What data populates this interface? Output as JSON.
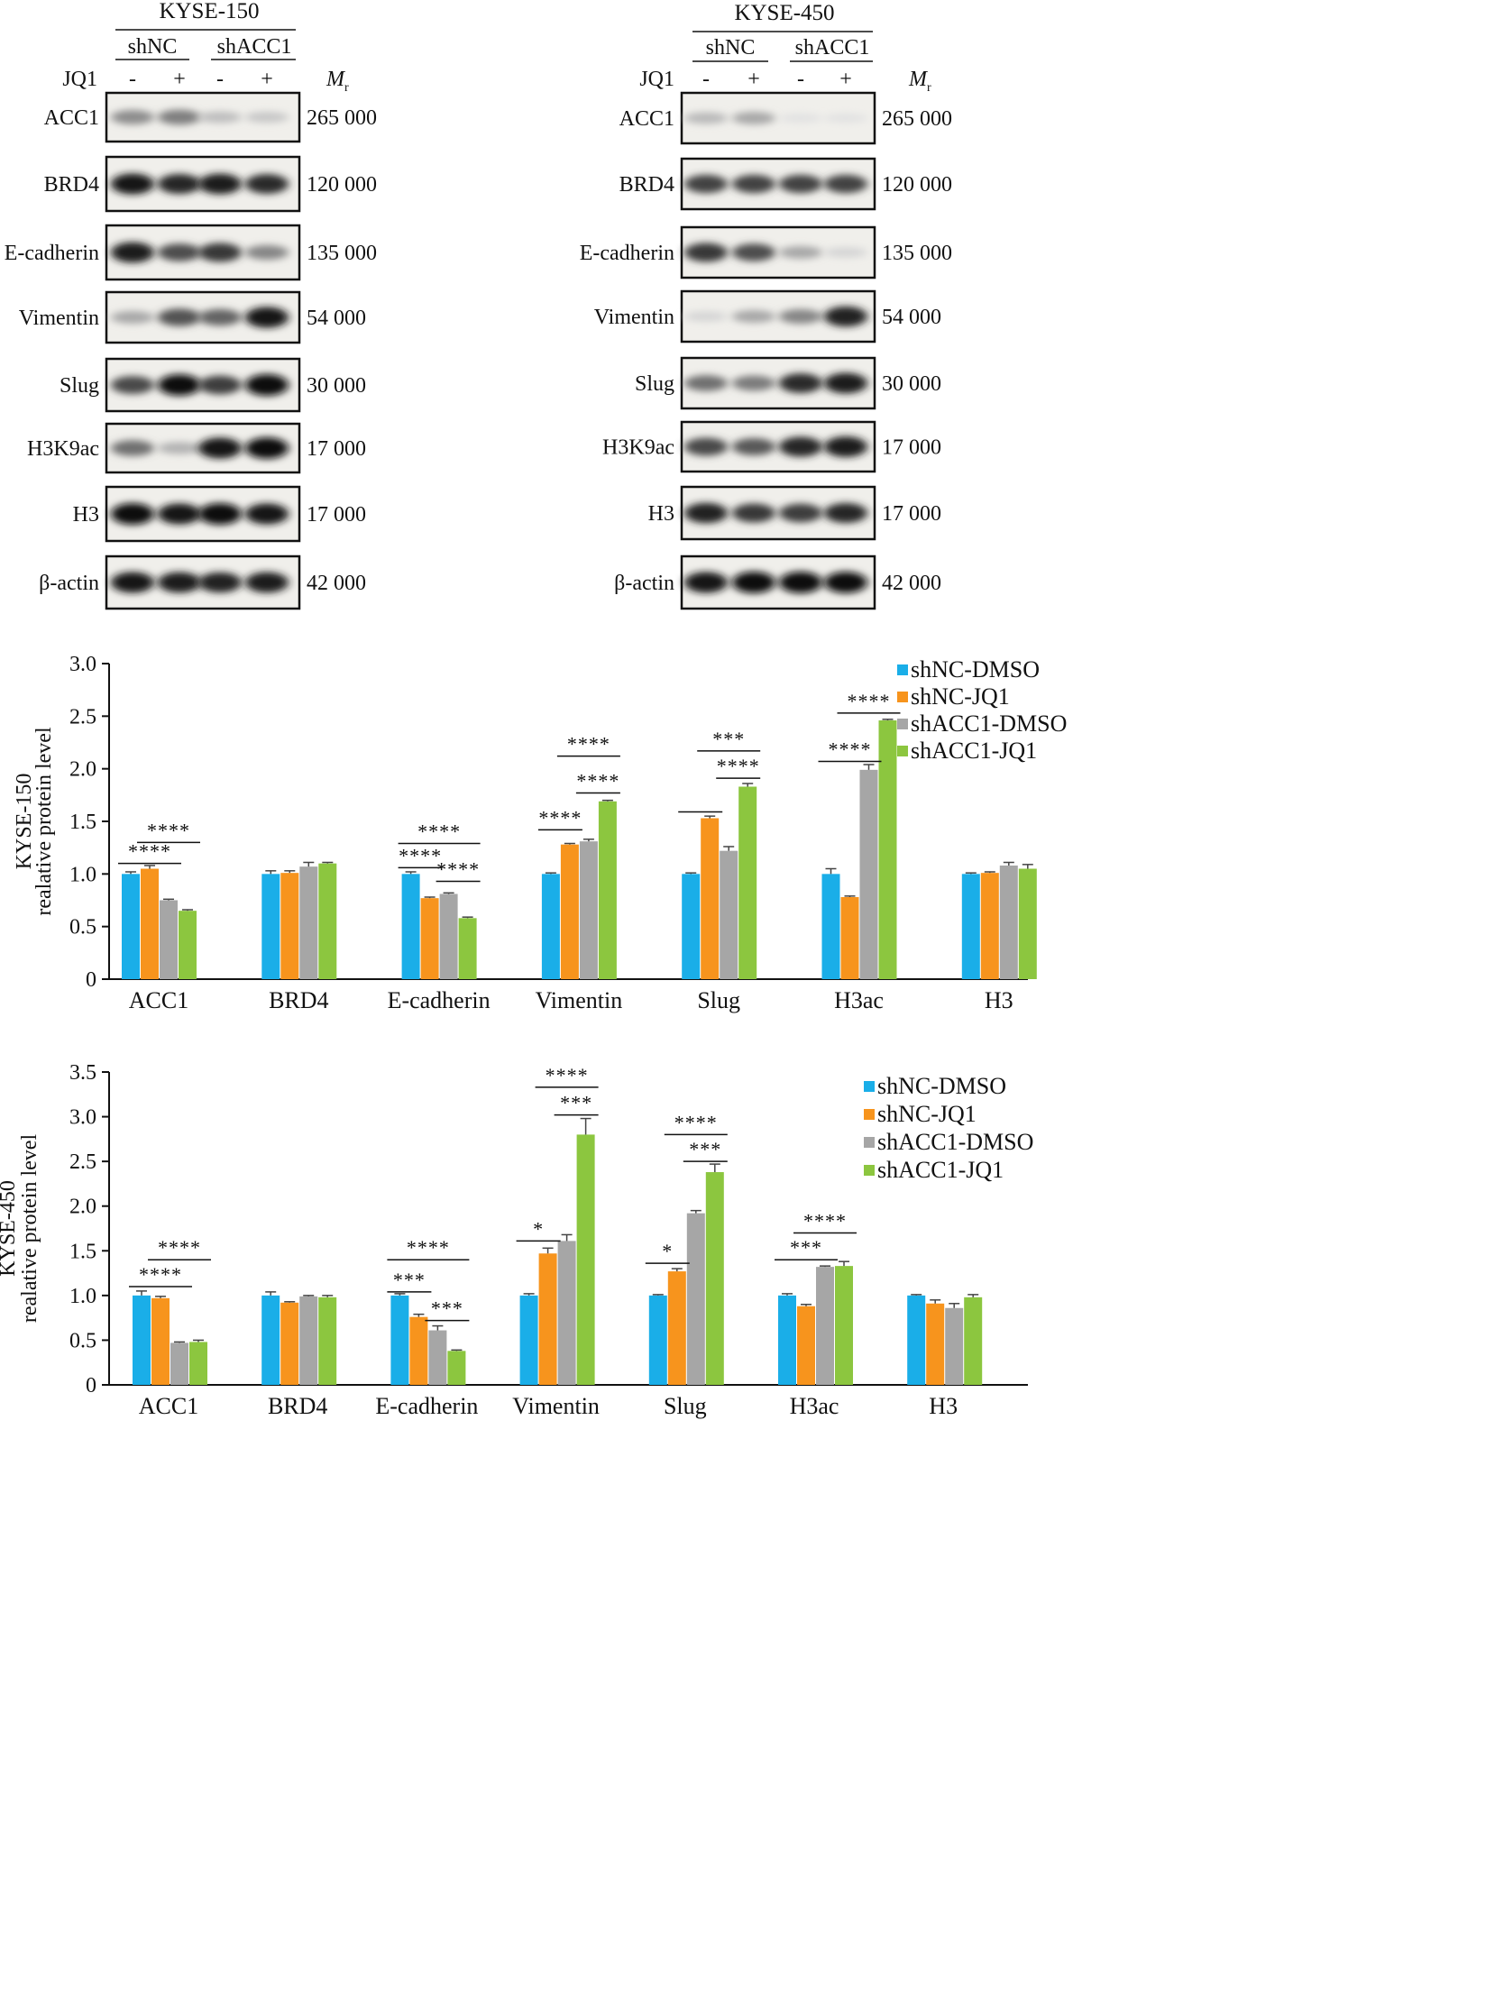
{
  "blots": [
    {
      "cell_line": "KYSE-150",
      "groups": [
        "shNC",
        "shACC1"
      ],
      "jq1_label": "JQ1",
      "jq1_signs": [
        "-",
        "+",
        "-",
        "+"
      ],
      "mr_label": "M",
      "mr_sub": "r",
      "rows": [
        {
          "protein": "ACC1",
          "mr": "265 000",
          "intensity": [
            0.42,
            0.48,
            0.2,
            0.16
          ]
        },
        {
          "protein": "BRD4",
          "mr": "120 000",
          "intensity": [
            0.95,
            0.88,
            0.92,
            0.85
          ]
        },
        {
          "protein": "E-cadherin",
          "mr": "135 000",
          "intensity": [
            0.92,
            0.7,
            0.8,
            0.45
          ]
        },
        {
          "protein": "Vimentin",
          "mr": "54 000",
          "intensity": [
            0.3,
            0.68,
            0.6,
            0.95
          ]
        },
        {
          "protein": "Slug",
          "mr": "30 000",
          "intensity": [
            0.72,
            0.98,
            0.78,
            1.0
          ]
        },
        {
          "protein": "H3K9ac",
          "mr": "17 000",
          "intensity": [
            0.55,
            0.25,
            0.95,
            0.98
          ]
        },
        {
          "protein": "H3",
          "mr": "17 000",
          "intensity": [
            1.0,
            0.95,
            1.0,
            0.95
          ]
        },
        {
          "protein": "β-actin",
          "mr": "42 000",
          "intensity": [
            0.95,
            0.92,
            0.9,
            0.92
          ]
        }
      ]
    },
    {
      "cell_line": "KYSE-450",
      "groups": [
        "shNC",
        "shACC1"
      ],
      "jq1_label": "JQ1",
      "jq1_signs": [
        "-",
        "+",
        "-",
        "+"
      ],
      "mr_label": "M",
      "mr_sub": "r",
      "rows": [
        {
          "protein": "ACC1",
          "mr": "265 000",
          "intensity": [
            0.22,
            0.3,
            0.04,
            0.04
          ]
        },
        {
          "protein": "BRD4",
          "mr": "120 000",
          "intensity": [
            0.75,
            0.75,
            0.75,
            0.75
          ]
        },
        {
          "protein": "E-cadherin",
          "mr": "135 000",
          "intensity": [
            0.8,
            0.7,
            0.3,
            0.1
          ]
        },
        {
          "protein": "Vimentin",
          "mr": "54 000",
          "intensity": [
            0.1,
            0.3,
            0.45,
            0.9
          ]
        },
        {
          "protein": "Slug",
          "mr": "30 000",
          "intensity": [
            0.55,
            0.5,
            0.85,
            0.92
          ]
        },
        {
          "protein": "H3K9ac",
          "mr": "17 000",
          "intensity": [
            0.72,
            0.65,
            0.88,
            0.92
          ]
        },
        {
          "protein": "H3",
          "mr": "17 000",
          "intensity": [
            0.9,
            0.8,
            0.78,
            0.88
          ]
        },
        {
          "protein": "β-actin",
          "mr": "42 000",
          "intensity": [
            0.95,
            1.0,
            1.0,
            0.98
          ]
        }
      ]
    }
  ],
  "chart_data": [
    {
      "type": "bar",
      "ylabel": [
        "KYSE-150",
        "realative protein level"
      ],
      "ylim": [
        0,
        3.0
      ],
      "yticks": [
        "0",
        "0.5",
        "1.0",
        "1.5",
        "2.0",
        "2.5",
        "3.0"
      ],
      "categories": [
        "ACC1",
        "BRD4",
        "E-cadherin",
        "Vimentin",
        "Slug",
        "H3ac",
        "H3"
      ],
      "series": [
        {
          "name": "shNC-DMSO",
          "color": "#1aaee8",
          "values": [
            1.0,
            1.0,
            1.0,
            1.0,
            1.0,
            1.0,
            1.0
          ],
          "errors": [
            0.02,
            0.03,
            0.02,
            0.01,
            0.01,
            0.05,
            0.01
          ]
        },
        {
          "name": "shNC-JQ1",
          "color": "#f7941d",
          "values": [
            1.05,
            1.01,
            0.77,
            1.28,
            1.53,
            0.78,
            1.01
          ],
          "errors": [
            0.03,
            0.02,
            0.01,
            0.01,
            0.02,
            0.01,
            0.01
          ]
        },
        {
          "name": "shACC1-DMSO",
          "color": "#a6a6a6",
          "values": [
            0.75,
            1.07,
            0.81,
            1.31,
            1.22,
            1.99,
            1.08
          ],
          "errors": [
            0.01,
            0.04,
            0.01,
            0.02,
            0.04,
            0.05,
            0.03
          ]
        },
        {
          "name": "shACC1-JQ1",
          "color": "#8cc63f",
          "values": [
            0.65,
            1.1,
            0.58,
            1.69,
            1.83,
            2.46,
            1.05
          ],
          "errors": [
            0.01,
            0.01,
            0.01,
            0.01,
            0.03,
            0.01,
            0.04
          ]
        }
      ],
      "significance": [
        {
          "cat": 0,
          "from": 0,
          "to": 2,
          "y": 1.1,
          "label": "****"
        },
        {
          "cat": 0,
          "from": 1,
          "to": 3,
          "y": 1.3,
          "label": "****"
        },
        {
          "cat": 2,
          "from": 0,
          "to": 1,
          "y": 1.06,
          "label": "****"
        },
        {
          "cat": 2,
          "from": 0,
          "to": 3,
          "y": 1.29,
          "label": "****"
        },
        {
          "cat": 2,
          "from": 2,
          "to": 3,
          "y": 0.93,
          "label": "****"
        },
        {
          "cat": 3,
          "from": 0,
          "to": 1,
          "y": 1.42,
          "label": "****"
        },
        {
          "cat": 3,
          "from": 1,
          "to": 3,
          "y": 2.12,
          "label": "****"
        },
        {
          "cat": 3,
          "from": 2,
          "to": 3,
          "y": 1.77,
          "label": "****"
        },
        {
          "cat": 4,
          "from": 0,
          "to": 1,
          "y": 1.59,
          "label": ""
        },
        {
          "cat": 4,
          "from": 1,
          "to": 3,
          "y": 2.17,
          "label": "***"
        },
        {
          "cat": 4,
          "from": 2,
          "to": 3,
          "y": 1.91,
          "label": "****"
        },
        {
          "cat": 5,
          "from": 0,
          "to": 2,
          "y": 2.07,
          "label": "****"
        },
        {
          "cat": 5,
          "from": 1,
          "to": 3,
          "y": 2.53,
          "label": "****"
        }
      ]
    },
    {
      "type": "bar",
      "ylabel": [
        "KYSE-450",
        "realative protein level"
      ],
      "ylim": [
        0,
        3.5
      ],
      "yticks": [
        "0",
        "0.5",
        "1.0",
        "1.5",
        "2.0",
        "2.5",
        "3.0",
        "3.5"
      ],
      "categories": [
        "ACC1",
        "BRD4",
        "E-cadherin",
        "Vimentin",
        "Slug",
        "H3ac",
        "H3"
      ],
      "series": [
        {
          "name": "shNC-DMSO",
          "color": "#1aaee8",
          "values": [
            1.0,
            1.0,
            1.0,
            1.0,
            1.0,
            1.0,
            1.0
          ],
          "errors": [
            0.05,
            0.04,
            0.02,
            0.02,
            0.01,
            0.02,
            0.01
          ]
        },
        {
          "name": "shNC-JQ1",
          "color": "#f7941d",
          "values": [
            0.97,
            0.92,
            0.76,
            1.47,
            1.27,
            0.88,
            0.91
          ],
          "errors": [
            0.02,
            0.01,
            0.03,
            0.06,
            0.03,
            0.02,
            0.04
          ]
        },
        {
          "name": "shACC1-DMSO",
          "color": "#a6a6a6",
          "values": [
            0.47,
            0.99,
            0.61,
            1.61,
            1.92,
            1.32,
            0.86
          ],
          "errors": [
            0.01,
            0.01,
            0.05,
            0.07,
            0.03,
            0.01,
            0.05
          ]
        },
        {
          "name": "shACC1-JQ1",
          "color": "#8cc63f",
          "values": [
            0.48,
            0.98,
            0.38,
            2.8,
            2.38,
            1.33,
            0.98
          ],
          "errors": [
            0.02,
            0.02,
            0.01,
            0.18,
            0.09,
            0.05,
            0.03
          ]
        }
      ],
      "significance": [
        {
          "cat": 0,
          "from": 0,
          "to": 2,
          "y": 1.1,
          "label": "****"
        },
        {
          "cat": 0,
          "from": 1,
          "to": 3,
          "y": 1.4,
          "label": "****"
        },
        {
          "cat": 2,
          "from": 0,
          "to": 1,
          "y": 1.04,
          "label": "***"
        },
        {
          "cat": 2,
          "from": 0,
          "to": 3,
          "y": 1.4,
          "label": "****"
        },
        {
          "cat": 2,
          "from": 2,
          "to": 3,
          "y": 0.72,
          "label": "***"
        },
        {
          "cat": 3,
          "from": 0,
          "to": 1,
          "y": 1.61,
          "label": "*"
        },
        {
          "cat": 3,
          "from": 1,
          "to": 3,
          "y": 3.33,
          "label": "****"
        },
        {
          "cat": 3,
          "from": 2,
          "to": 3,
          "y": 3.02,
          "label": "***"
        },
        {
          "cat": 4,
          "from": 0,
          "to": 1,
          "y": 1.36,
          "label": "*"
        },
        {
          "cat": 4,
          "from": 1,
          "to": 3,
          "y": 2.8,
          "label": "****"
        },
        {
          "cat": 4,
          "from": 2,
          "to": 3,
          "y": 2.5,
          "label": "***"
        },
        {
          "cat": 5,
          "from": 0,
          "to": 2,
          "y": 1.4,
          "label": "***"
        },
        {
          "cat": 5,
          "from": 1,
          "to": 3,
          "y": 1.7,
          "label": "****"
        }
      ]
    }
  ]
}
